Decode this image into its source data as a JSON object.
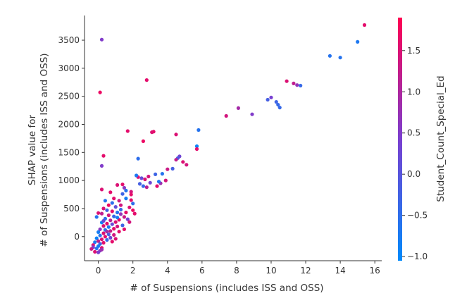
{
  "chart_data": {
    "type": "scatter",
    "title": "",
    "xlabel": "# of Suspensions (includes ISS and OSS)",
    "ylabel_lines": [
      "SHAP value for",
      "# of Suspensions (includes ISS and OSS)"
    ],
    "xlim": [
      -0.8,
      16.4
    ],
    "ylim": [
      -430,
      3940
    ],
    "x_ticks": [
      0,
      2,
      4,
      6,
      8,
      10,
      12,
      14,
      16
    ],
    "y_ticks": [
      0,
      500,
      1000,
      1500,
      2000,
      2500,
      3000,
      3500
    ],
    "grid": false,
    "colorbar": {
      "label": "Student_Count_Special_Ed",
      "range": [
        -1.05,
        1.9
      ],
      "ticks": [
        -1.0,
        -0.5,
        0.0,
        0.5,
        1.0,
        1.5
      ],
      "tick_labels": [
        "−1.0",
        "−0.5",
        "0.0",
        "0.5",
        "1.0",
        "1.5"
      ],
      "colors": [
        "#008afb",
        "#7a3fd0",
        "#ff0052"
      ]
    },
    "points": [
      {
        "x": 15.4,
        "y": 3770,
        "c": 1.6
      },
      {
        "x": 15.0,
        "y": 3470,
        "c": -0.7
      },
      {
        "x": 13.4,
        "y": 3220,
        "c": -0.6
      },
      {
        "x": 14.0,
        "y": 3190,
        "c": -0.6
      },
      {
        "x": 0.2,
        "y": 3510,
        "c": 0.5
      },
      {
        "x": 2.8,
        "y": 2790,
        "c": 1.6
      },
      {
        "x": 0.1,
        "y": 2570,
        "c": 1.7
      },
      {
        "x": 10.9,
        "y": 2770,
        "c": 1.5
      },
      {
        "x": 11.3,
        "y": 2730,
        "c": 1.2
      },
      {
        "x": 11.5,
        "y": 2700,
        "c": 0.7
      },
      {
        "x": 11.7,
        "y": 2690,
        "c": -0.4
      },
      {
        "x": 9.8,
        "y": 2440,
        "c": -0.2
      },
      {
        "x": 10.0,
        "y": 2480,
        "c": 0.4
      },
      {
        "x": 10.3,
        "y": 2400,
        "c": -0.3
      },
      {
        "x": 10.4,
        "y": 2350,
        "c": -0.4
      },
      {
        "x": 10.5,
        "y": 2300,
        "c": -0.4
      },
      {
        "x": 8.1,
        "y": 2290,
        "c": 0.9
      },
      {
        "x": 8.9,
        "y": 2180,
        "c": 0.5
      },
      {
        "x": 7.4,
        "y": 2150,
        "c": 1.4
      },
      {
        "x": 5.8,
        "y": 1900,
        "c": -0.6
      },
      {
        "x": 1.7,
        "y": 1880,
        "c": 1.6
      },
      {
        "x": 3.1,
        "y": 1860,
        "c": 1.5
      },
      {
        "x": 3.2,
        "y": 1870,
        "c": 1.6
      },
      {
        "x": 4.5,
        "y": 1820,
        "c": 1.5
      },
      {
        "x": 2.6,
        "y": 1700,
        "c": 1.7
      },
      {
        "x": 5.7,
        "y": 1610,
        "c": -0.9
      },
      {
        "x": 5.7,
        "y": 1560,
        "c": 1.6
      },
      {
        "x": 4.7,
        "y": 1430,
        "c": 0.3
      },
      {
        "x": 0.3,
        "y": 1440,
        "c": 1.6
      },
      {
        "x": 2.3,
        "y": 1390,
        "c": -0.5
      },
      {
        "x": 4.6,
        "y": 1400,
        "c": -0.1
      },
      {
        "x": 4.5,
        "y": 1370,
        "c": 1.2
      },
      {
        "x": 4.9,
        "y": 1330,
        "c": 1.5
      },
      {
        "x": 5.1,
        "y": 1280,
        "c": 1.4
      },
      {
        "x": 0.2,
        "y": 1260,
        "c": 0.5
      },
      {
        "x": 4.3,
        "y": 1210,
        "c": -0.2
      },
      {
        "x": 4.0,
        "y": 1200,
        "c": 1.3
      },
      {
        "x": 3.7,
        "y": 1120,
        "c": -0.6
      },
      {
        "x": 3.3,
        "y": 1110,
        "c": -0.3
      },
      {
        "x": 2.9,
        "y": 1070,
        "c": 1.4
      },
      {
        "x": 2.5,
        "y": 1040,
        "c": 0.2
      },
      {
        "x": 2.3,
        "y": 1060,
        "c": 1.5
      },
      {
        "x": 2.2,
        "y": 1090,
        "c": -0.7
      },
      {
        "x": 3.9,
        "y": 1000,
        "c": 1.4
      },
      {
        "x": 3.6,
        "y": 950,
        "c": 0.8
      },
      {
        "x": 3.0,
        "y": 960,
        "c": 0.3
      },
      {
        "x": 3.4,
        "y": 900,
        "c": 1.6
      },
      {
        "x": 2.8,
        "y": 880,
        "c": 1.1
      },
      {
        "x": 2.6,
        "y": 900,
        "c": -0.4
      },
      {
        "x": 1.4,
        "y": 930,
        "c": 1.6
      },
      {
        "x": 1.1,
        "y": 920,
        "c": 1.5
      },
      {
        "x": 1.5,
        "y": 870,
        "c": 0.6
      },
      {
        "x": 1.6,
        "y": 820,
        "c": -0.6
      },
      {
        "x": 1.9,
        "y": 800,
        "c": 1.4
      },
      {
        "x": 0.2,
        "y": 840,
        "c": 1.5
      },
      {
        "x": 0.7,
        "y": 790,
        "c": 1.6
      },
      {
        "x": 1.4,
        "y": 760,
        "c": -0.3
      },
      {
        "x": 1.6,
        "y": 680,
        "c": -0.8
      },
      {
        "x": 1.9,
        "y": 650,
        "c": 1.6
      },
      {
        "x": 1.2,
        "y": 640,
        "c": 1.3
      },
      {
        "x": 0.8,
        "y": 600,
        "c": -0.5
      },
      {
        "x": 1.3,
        "y": 560,
        "c": 1.4
      },
      {
        "x": 1.0,
        "y": 530,
        "c": 0.1
      },
      {
        "x": 1.8,
        "y": 520,
        "c": 1.5
      },
      {
        "x": 2.0,
        "y": 470,
        "c": 1.7
      },
      {
        "x": 2.1,
        "y": 410,
        "c": 1.6
      },
      {
        "x": 0.3,
        "y": 500,
        "c": 1.5
      },
      {
        "x": 0.5,
        "y": 470,
        "c": -0.2
      },
      {
        "x": 0.8,
        "y": 450,
        "c": 1.6
      },
      {
        "x": 1.1,
        "y": 430,
        "c": -0.6
      },
      {
        "x": 1.3,
        "y": 400,
        "c": 0.7
      },
      {
        "x": 0.6,
        "y": 380,
        "c": 1.4
      },
      {
        "x": 0.9,
        "y": 360,
        "c": -0.4
      },
      {
        "x": 1.5,
        "y": 350,
        "c": 1.3
      },
      {
        "x": 1.7,
        "y": 310,
        "c": 0.4
      },
      {
        "x": 1.2,
        "y": 300,
        "c": 1.6
      },
      {
        "x": 0.4,
        "y": 320,
        "c": -0.5
      },
      {
        "x": 0.7,
        "y": 290,
        "c": 1.1
      },
      {
        "x": 1.0,
        "y": 260,
        "c": 1.5
      },
      {
        "x": 0.2,
        "y": 250,
        "c": -0.9
      },
      {
        "x": 0.5,
        "y": 230,
        "c": 1.6
      },
      {
        "x": 0.8,
        "y": 220,
        "c": 0.2
      },
      {
        "x": 1.4,
        "y": 200,
        "c": -0.3
      },
      {
        "x": 1.1,
        "y": 180,
        "c": 1.4
      },
      {
        "x": 0.3,
        "y": 190,
        "c": 1.5
      },
      {
        "x": 0.6,
        "y": 170,
        "c": -0.7
      },
      {
        "x": 0.9,
        "y": 140,
        "c": 1.6
      },
      {
        "x": 0.1,
        "y": 130,
        "c": 0.6
      },
      {
        "x": 0.4,
        "y": 120,
        "c": -0.5
      },
      {
        "x": 0.7,
        "y": 100,
        "c": 1.3
      },
      {
        "x": 1.2,
        "y": 90,
        "c": 1.6
      },
      {
        "x": 0.0,
        "y": 80,
        "c": -0.8
      },
      {
        "x": 0.3,
        "y": 60,
        "c": 1.5
      },
      {
        "x": 0.6,
        "y": 40,
        "c": -0.2
      },
      {
        "x": 0.9,
        "y": 30,
        "c": 1.4
      },
      {
        "x": 0.1,
        "y": 20,
        "c": -0.6
      },
      {
        "x": 0.4,
        "y": 0,
        "c": 1.6
      },
      {
        "x": 0.7,
        "y": -20,
        "c": 0.3
      },
      {
        "x": -0.1,
        "y": -30,
        "c": -0.9
      },
      {
        "x": 0.2,
        "y": -50,
        "c": 1.5
      },
      {
        "x": 0.5,
        "y": -60,
        "c": -0.4
      },
      {
        "x": 0.0,
        "y": -80,
        "c": 1.2
      },
      {
        "x": -0.2,
        "y": -100,
        "c": -0.7
      },
      {
        "x": 0.3,
        "y": -110,
        "c": 1.6
      },
      {
        "x": 0.1,
        "y": -130,
        "c": -0.3
      },
      {
        "x": -0.3,
        "y": -150,
        "c": 1.4
      },
      {
        "x": 0.0,
        "y": -170,
        "c": -0.8
      },
      {
        "x": -0.3,
        "y": -190,
        "c": 0.5
      },
      {
        "x": 0.2,
        "y": -200,
        "c": 1.6
      },
      {
        "x": -0.1,
        "y": -210,
        "c": -0.6
      },
      {
        "x": -0.4,
        "y": -220,
        "c": 1.3
      },
      {
        "x": 0.1,
        "y": -250,
        "c": 0.6
      },
      {
        "x": -0.2,
        "y": -270,
        "c": 1.5
      },
      {
        "x": 0.0,
        "y": -280,
        "c": 0.4
      },
      {
        "x": 0.2,
        "y": -230,
        "c": 0.8
      },
      {
        "x": 2.0,
        "y": 590,
        "c": -0.5
      },
      {
        "x": 1.9,
        "y": 750,
        "c": 1.6
      },
      {
        "x": 3.5,
        "y": 980,
        "c": -0.7
      },
      {
        "x": 2.7,
        "y": 1020,
        "c": 1.5
      },
      {
        "x": 2.4,
        "y": 940,
        "c": -0.2
      },
      {
        "x": 0.9,
        "y": 680,
        "c": 1.6
      },
      {
        "x": 0.4,
        "y": 640,
        "c": -0.6
      },
      {
        "x": 0.6,
        "y": 560,
        "c": 1.7
      },
      {
        "x": 0.0,
        "y": 420,
        "c": 1.5
      },
      {
        "x": -0.1,
        "y": 350,
        "c": -0.6
      },
      {
        "x": 1.6,
        "y": 430,
        "c": 1.6
      },
      {
        "x": 1.8,
        "y": 260,
        "c": 1.4
      },
      {
        "x": 1.5,
        "y": 130,
        "c": 1.6
      },
      {
        "x": 1.0,
        "y": -40,
        "c": 1.5
      },
      {
        "x": 0.8,
        "y": -90,
        "c": 1.6
      },
      {
        "x": 0.3,
        "y": 280,
        "c": 0.2
      },
      {
        "x": 1.1,
        "y": 340,
        "c": -0.8
      },
      {
        "x": 1.3,
        "y": 480,
        "c": -0.4
      },
      {
        "x": 0.5,
        "y": 90,
        "c": 0.9
      },
      {
        "x": 0.2,
        "y": 410,
        "c": 1.2
      }
    ]
  }
}
